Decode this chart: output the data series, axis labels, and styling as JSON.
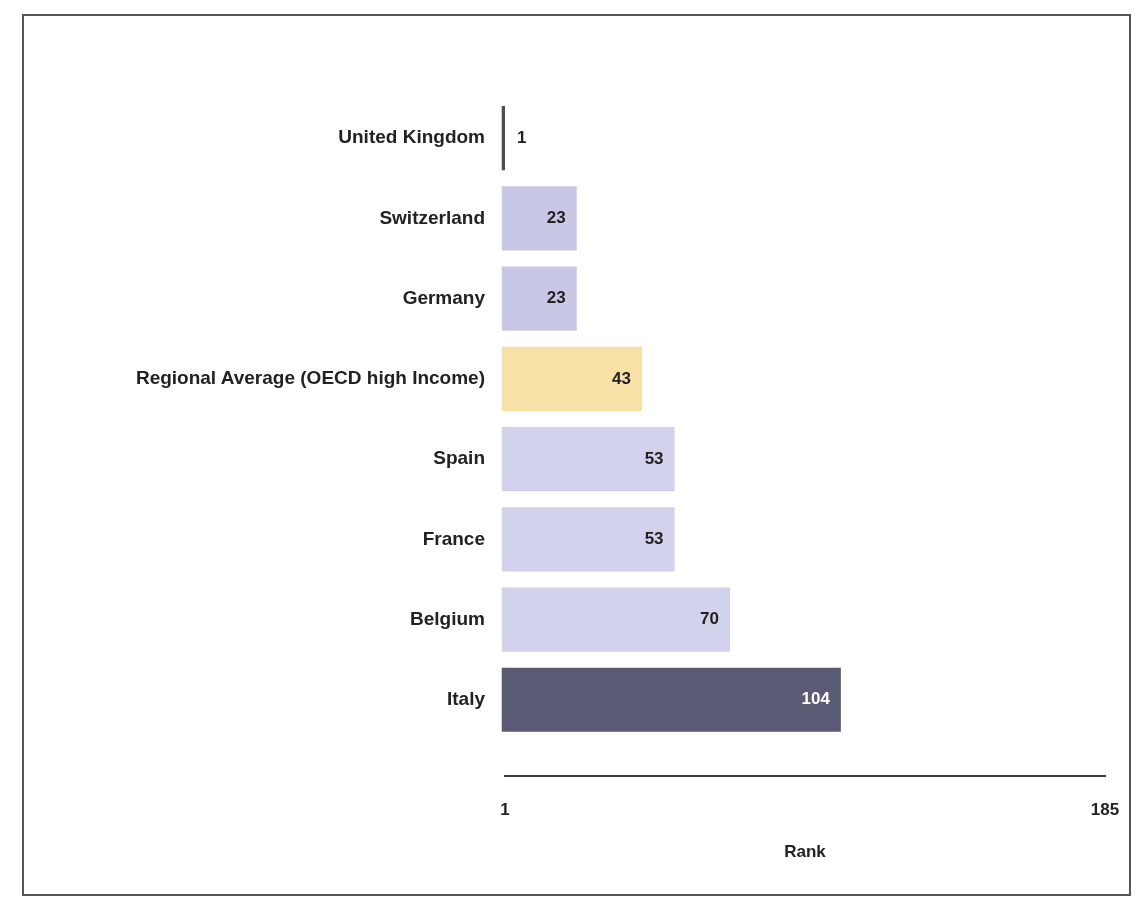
{
  "chart_data": {
    "type": "bar",
    "orientation": "horizontal",
    "categories": [
      "United Kingdom",
      "Switzerland",
      "Germany",
      "Regional Average (OECD high Income)",
      "Spain",
      "France",
      "Belgium",
      "Italy"
    ],
    "values": [
      1,
      23,
      23,
      43,
      53,
      53,
      70,
      104
    ],
    "colors": [
      "#4d4d4d",
      "#c8c8e6",
      "#c8c8e6",
      "#f7e1a6",
      "#d2d2ec",
      "#d2d2ec",
      "#d2d2ec",
      "#5b5a74"
    ],
    "xlim": [
      1,
      185
    ],
    "xticks": [
      1,
      185
    ],
    "xlabel": "Rank",
    "data_labels": true
  }
}
